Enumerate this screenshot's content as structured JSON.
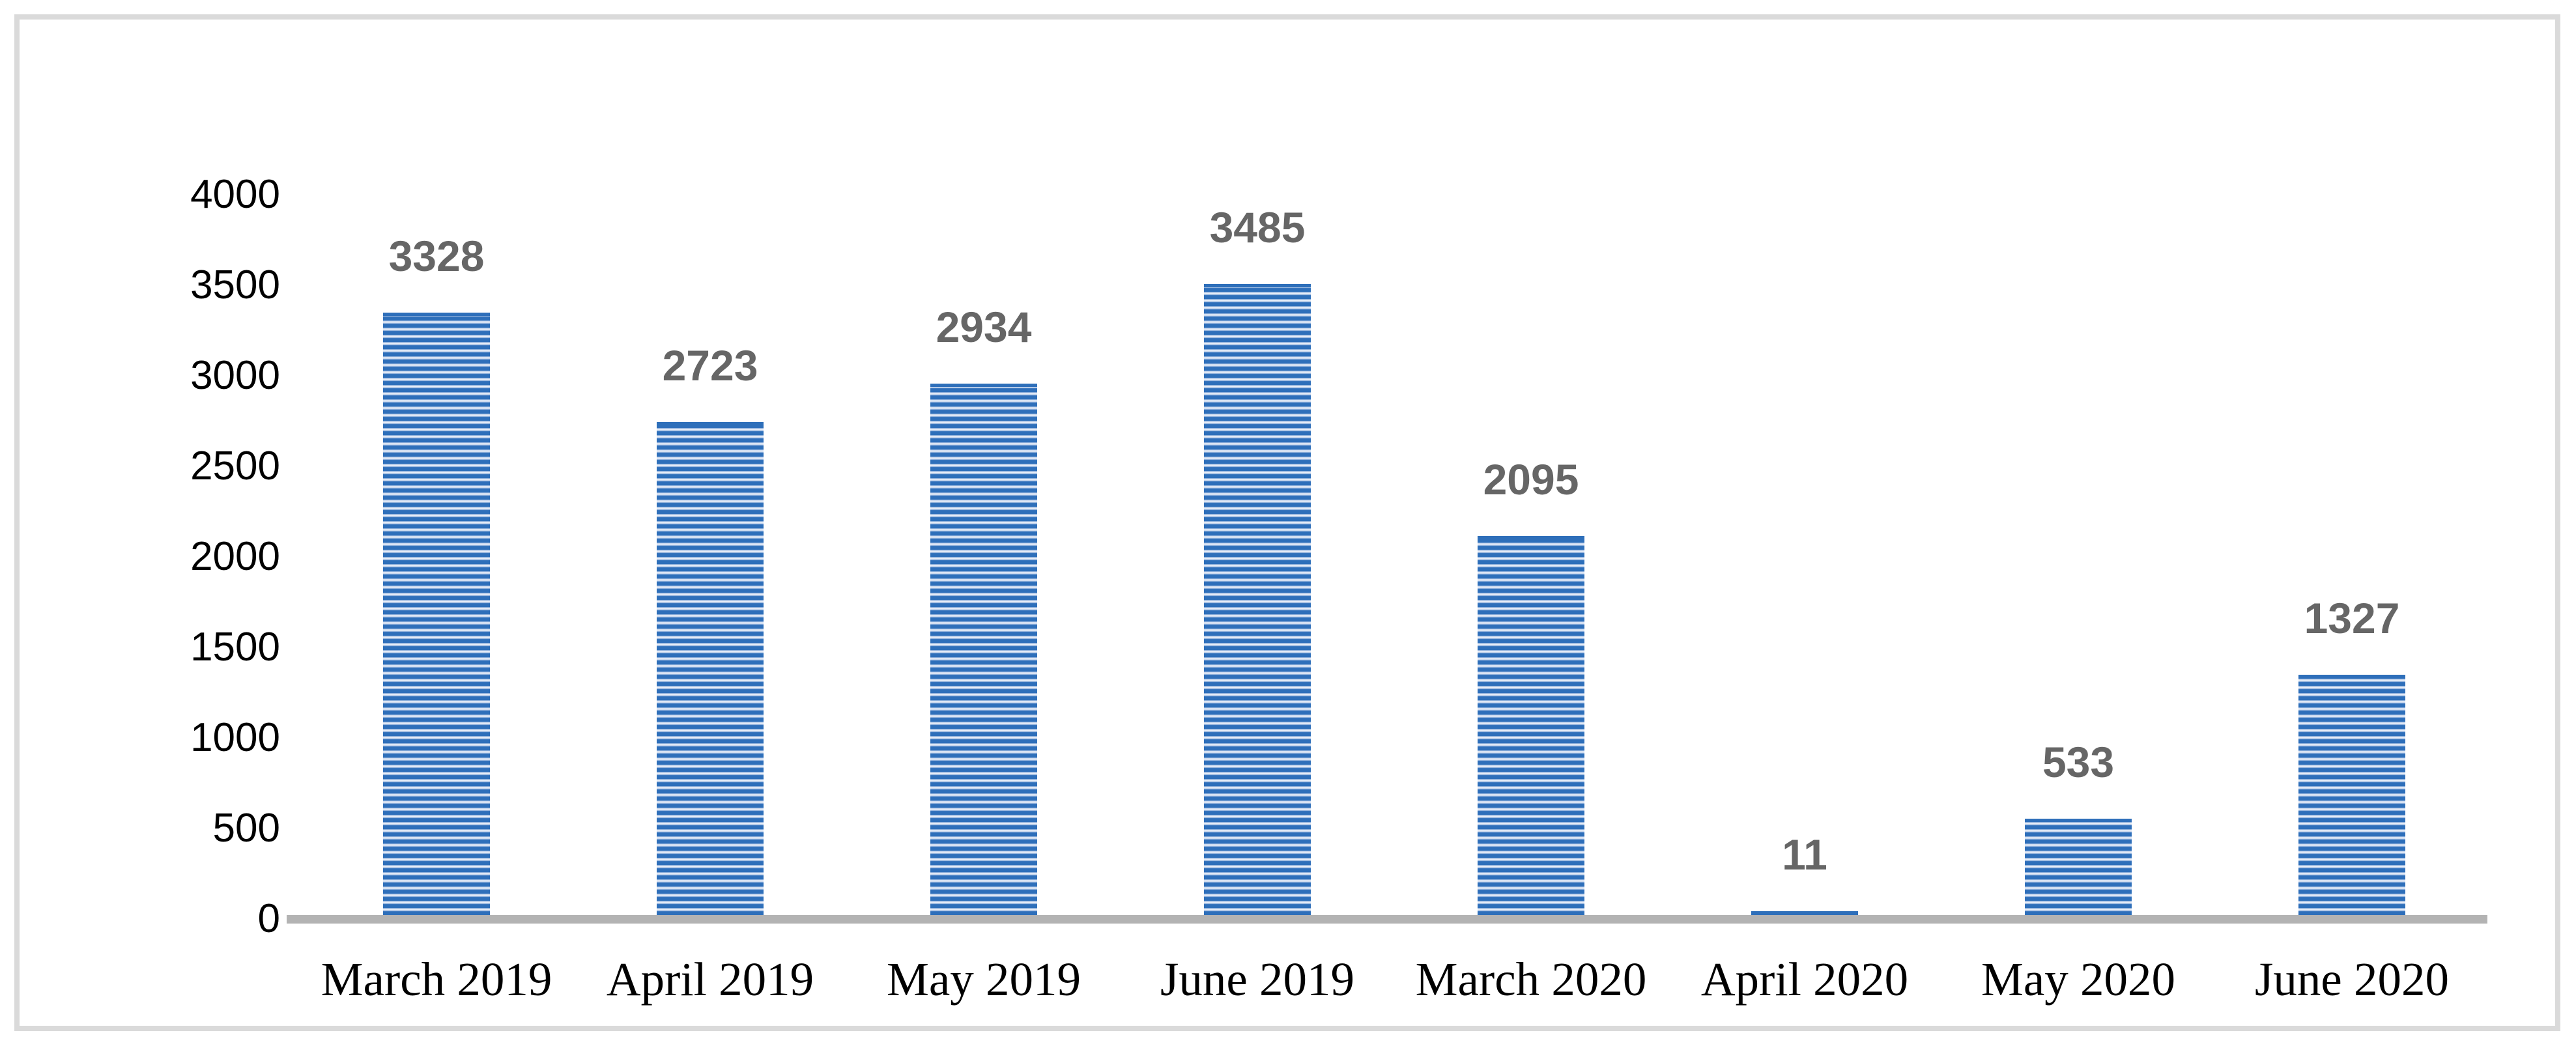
{
  "chart_data": {
    "type": "bar",
    "title": "",
    "xlabel": "",
    "ylabel": "",
    "categories": [
      "March 2019",
      "April 2019",
      "May 2019",
      "June 2019",
      "March 2020",
      "April 2020",
      "May 2020",
      "June 2020"
    ],
    "values": [
      3328,
      2723,
      2934,
      3485,
      2095,
      11,
      533,
      1327
    ],
    "yticks": [
      0,
      500,
      1000,
      1500,
      2000,
      2500,
      3000,
      3500,
      4000
    ],
    "ylim": [
      0,
      4000
    ],
    "grid": false,
    "legend": "none",
    "bar_pattern": "horizontal-stripes",
    "colors": {
      "bar_stripe_dark": "#2e6fba",
      "bar_stripe_light": "#e8eef8",
      "data_label": "#666666",
      "axis_line": "#b3b3b3",
      "tick_label": "#000000",
      "frame_border": "#dadada",
      "background": "#ffffff"
    }
  }
}
